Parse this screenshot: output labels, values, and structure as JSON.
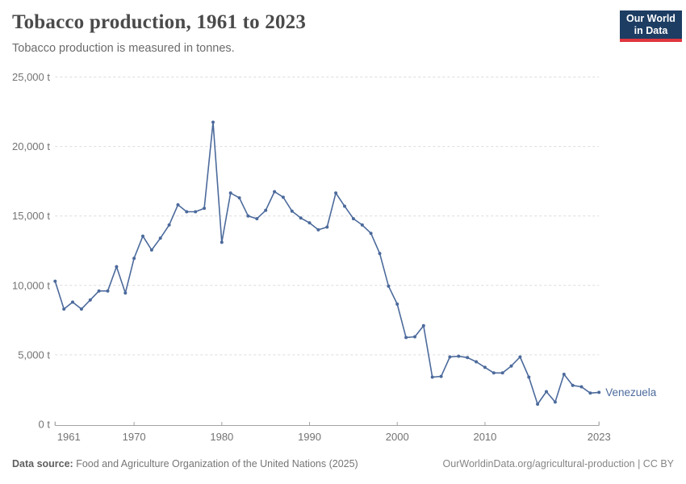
{
  "header": {
    "title": "Tobacco production, 1961 to 2023",
    "subtitle": "Tobacco production is measured in tonnes."
  },
  "logo": {
    "line1": "Our World",
    "line2": "in Data",
    "bg_color": "#1d3d63",
    "accent_color": "#e0373f"
  },
  "chart_data": {
    "type": "line",
    "title": "Tobacco production, 1961 to 2023",
    "ylabel": "",
    "xlabel": "",
    "unit_suffix": " t",
    "ylim": [
      0,
      25000
    ],
    "yticks": [
      0,
      5000,
      10000,
      15000,
      20000,
      25000
    ],
    "xticks": [
      1961,
      1970,
      1980,
      1990,
      2000,
      2010,
      2023
    ],
    "grid": "horizontal-dashed",
    "legend_position": "end-of-line-label",
    "series": [
      {
        "name": "Venezuela",
        "color": "#4c6a9c",
        "years": [
          1961,
          1962,
          1963,
          1964,
          1965,
          1966,
          1967,
          1968,
          1969,
          1970,
          1971,
          1972,
          1973,
          1974,
          1975,
          1976,
          1977,
          1978,
          1979,
          1980,
          1981,
          1982,
          1983,
          1984,
          1985,
          1986,
          1987,
          1988,
          1989,
          1990,
          1991,
          1992,
          1993,
          1994,
          1995,
          1996,
          1997,
          1998,
          1999,
          2000,
          2001,
          2002,
          2003,
          2004,
          2005,
          2006,
          2007,
          2008,
          2009,
          2010,
          2011,
          2012,
          2013,
          2014,
          2015,
          2016,
          2017,
          2018,
          2019,
          2020,
          2021,
          2022,
          2023
        ],
        "values": [
          10300,
          8300,
          8800,
          8300,
          8950,
          9600,
          9600,
          11350,
          9450,
          11950,
          13550,
          12550,
          13400,
          14350,
          15800,
          15300,
          15300,
          15550,
          21750,
          13100,
          16650,
          16300,
          15000,
          14800,
          15400,
          16750,
          16350,
          15350,
          14850,
          14500,
          14000,
          14200,
          16650,
          15700,
          14800,
          14350,
          13750,
          12300,
          9950,
          8650,
          6250,
          6300,
          7100,
          3400,
          3450,
          4850,
          4900,
          4800,
          4500,
          4100,
          3700,
          3700,
          4200,
          4850,
          3400,
          1450,
          2350,
          1600,
          3600,
          2800,
          2700,
          2250,
          2300
        ]
      }
    ],
    "colors": {
      "gridline": "#dcdcdc",
      "axis": "#a3a3a3",
      "tick_label": "#737373"
    }
  },
  "footer": {
    "data_source_label": "Data source:",
    "data_source_text": " Food and Agriculture Organization of the United Nations (2025)",
    "right_text": "OurWorldinData.org/agricultural-production | CC BY"
  }
}
